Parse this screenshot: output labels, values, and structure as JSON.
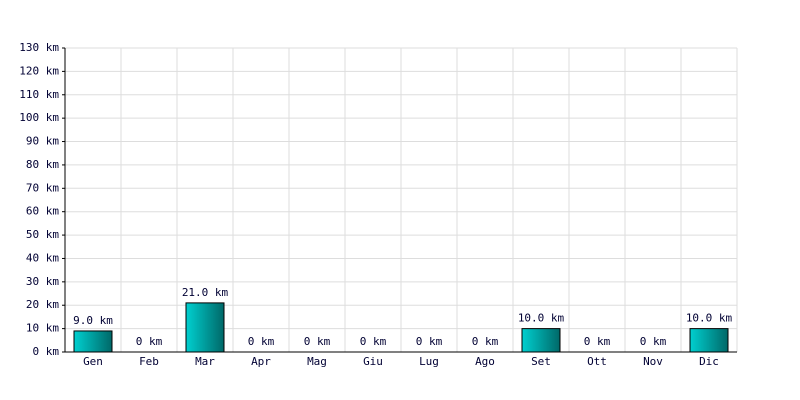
{
  "chart_data": {
    "type": "bar",
    "categories": [
      "Gen",
      "Feb",
      "Mar",
      "Apr",
      "Mag",
      "Giu",
      "Lug",
      "Ago",
      "Set",
      "Ott",
      "Nov",
      "Dic"
    ],
    "values": [
      9,
      0,
      21,
      0,
      0,
      0,
      0,
      0,
      10,
      0,
      0,
      10
    ],
    "value_labels": [
      "9.0 km",
      "0 km",
      "21.0 km",
      "0 km",
      "0 km",
      "0 km",
      "0 km",
      "0 km",
      "10.0 km",
      "0 km",
      "0 km",
      "10.0 km"
    ],
    "color": "#00d0d0",
    "ylim": [
      0,
      130
    ],
    "yticks": [
      {
        "value": 0,
        "label": "0 km"
      },
      {
        "value": 10,
        "label": "10 km"
      },
      {
        "value": 20,
        "label": "20 km"
      },
      {
        "value": 30,
        "label": "30 km"
      },
      {
        "value": 40,
        "label": "40 km"
      },
      {
        "value": 50,
        "label": "50 km"
      },
      {
        "value": 60,
        "label": "60 km"
      },
      {
        "value": 70,
        "label": "70 km"
      },
      {
        "value": 80,
        "label": "80 km"
      },
      {
        "value": 90,
        "label": "90 km"
      },
      {
        "value": 100,
        "label": "100 km"
      },
      {
        "value": 110,
        "label": "110 km"
      },
      {
        "value": 120,
        "label": "120 km"
      },
      {
        "value": 130,
        "label": "130 km"
      }
    ],
    "grid": true
  }
}
